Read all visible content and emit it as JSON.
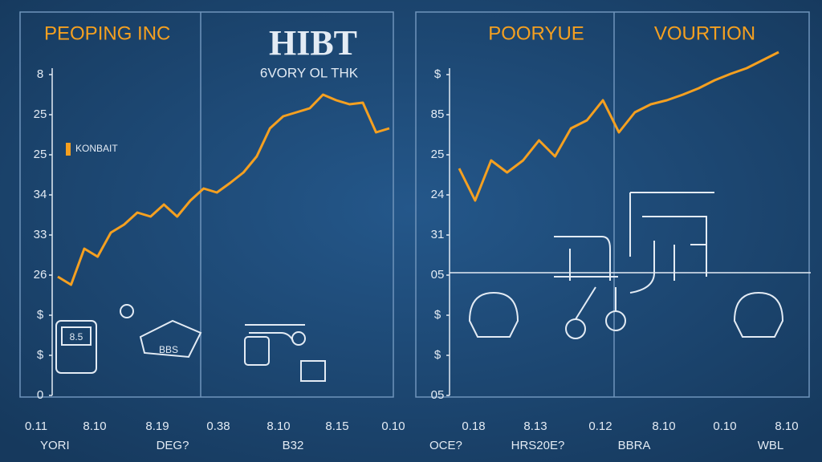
{
  "chart_data": [
    {
      "type": "line",
      "title": "PEOPING INC",
      "annotations": [
        "HIBT",
        "6VORY OL THK",
        "8.5",
        "BBS"
      ],
      "series": [
        {
          "name": "KONBAIT",
          "color": "#f5a020",
          "values": [
            2.96,
            2.76,
            3.66,
            3.46,
            4.06,
            4.26,
            4.56,
            4.46,
            4.76,
            4.46,
            4.86,
            5.16,
            5.06,
            5.3,
            5.56,
            5.96,
            6.66,
            6.96,
            7.06,
            7.16,
            7.5,
            7.36,
            7.26,
            7.3,
            6.56,
            6.66
          ]
        }
      ],
      "ylim": [
        0,
        8
      ],
      "yticks": [
        {
          "value": 0,
          "label": "0"
        },
        {
          "value": 1,
          "label": "$"
        },
        {
          "value": 2,
          "label": "$"
        },
        {
          "value": 3,
          "label": "26"
        },
        {
          "value": 4,
          "label": "33"
        },
        {
          "value": 5,
          "label": "34"
        },
        {
          "value": 6,
          "label": "25"
        },
        {
          "value": 7,
          "label": "25"
        },
        {
          "value": 8,
          "label": "8"
        }
      ],
      "x_tick_labels": [
        "0.11",
        "8.10",
        "8.19",
        "0.38",
        "8.10",
        "8.15",
        "0.10"
      ],
      "x_axis_labels": [
        "YORI",
        "DEG?",
        "B32"
      ]
    },
    {
      "type": "line",
      "title": "POORYUE",
      "annotations": [
        "VOURTION"
      ],
      "series": [
        {
          "name": null,
          "color": "#f5a020",
          "values": [
            5.66,
            4.86,
            5.86,
            5.56,
            5.86,
            6.36,
            5.96,
            6.66,
            6.86,
            7.36,
            6.56,
            7.06,
            7.26,
            7.36,
            7.5,
            7.66,
            7.86,
            8.02,
            8.16,
            8.36,
            8.56
          ]
        }
      ],
      "ylim": [
        0,
        8
      ],
      "yticks": [
        {
          "value": 0,
          "label": "05"
        },
        {
          "value": 1,
          "label": "$"
        },
        {
          "value": 2,
          "label": "$"
        },
        {
          "value": 3,
          "label": "05"
        },
        {
          "value": 4,
          "label": "31"
        },
        {
          "value": 5,
          "label": "24"
        },
        {
          "value": 6,
          "label": "25"
        },
        {
          "value": 7,
          "label": "85"
        },
        {
          "value": 8,
          "label": "$"
        }
      ],
      "x_tick_labels": [
        "0.18",
        "8.13",
        "0.12",
        "8.10",
        "0.10",
        "8.10"
      ],
      "x_axis_labels": [
        "OCE?",
        "HRS20E?",
        "BBRA",
        "WBL"
      ]
    }
  ]
}
